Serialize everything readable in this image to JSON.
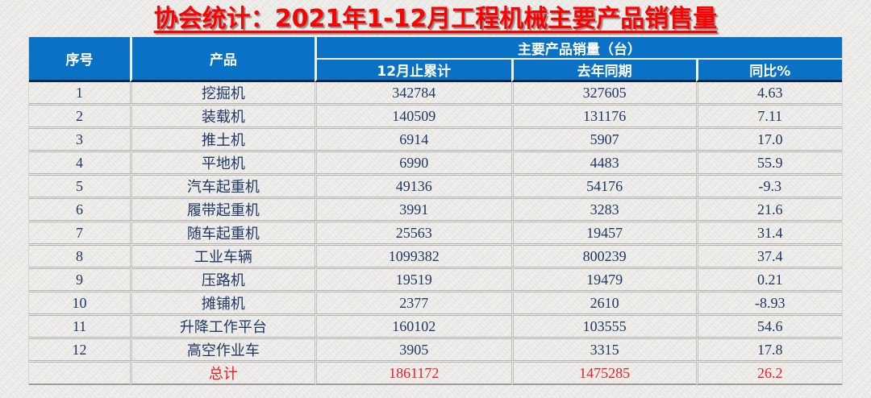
{
  "title": "协会统计：2021年1-12月工程机械主要产品销售量",
  "chart_data": {
    "type": "table",
    "title": "协会统计：2021年1-12月工程机械主要产品销售量",
    "group_header": "主要产品销量（台）",
    "columns": [
      "序号",
      "产品",
      "12月止累计",
      "去年同期",
      "同比%"
    ],
    "rows": [
      {
        "no": "1",
        "product": "挖掘机",
        "dec_cumulative": "342784",
        "last_year": "327605",
        "yoy_pct": "4.63"
      },
      {
        "no": "2",
        "product": "装载机",
        "dec_cumulative": "140509",
        "last_year": "131176",
        "yoy_pct": "7.11"
      },
      {
        "no": "3",
        "product": "推土机",
        "dec_cumulative": "6914",
        "last_year": "5907",
        "yoy_pct": "17.0"
      },
      {
        "no": "4",
        "product": "平地机",
        "dec_cumulative": "6990",
        "last_year": "4483",
        "yoy_pct": "55.9"
      },
      {
        "no": "5",
        "product": "汽车起重机",
        "dec_cumulative": "49136",
        "last_year": "54176",
        "yoy_pct": "-9.3"
      },
      {
        "no": "6",
        "product": "履带起重机",
        "dec_cumulative": "3991",
        "last_year": "3283",
        "yoy_pct": "21.6"
      },
      {
        "no": "7",
        "product": "随车起重机",
        "dec_cumulative": "25563",
        "last_year": "19457",
        "yoy_pct": "31.4"
      },
      {
        "no": "8",
        "product": "工业车辆",
        "dec_cumulative": "1099382",
        "last_year": "800239",
        "yoy_pct": "37.4"
      },
      {
        "no": "9",
        "product": "压路机",
        "dec_cumulative": "19519",
        "last_year": "19479",
        "yoy_pct": "0.21"
      },
      {
        "no": "10",
        "product": "摊铺机",
        "dec_cumulative": "2377",
        "last_year": "2610",
        "yoy_pct": "-8.93"
      },
      {
        "no": "11",
        "product": "升降工作平台",
        "dec_cumulative": "160102",
        "last_year": "103555",
        "yoy_pct": "54.6"
      },
      {
        "no": "12",
        "product": "高空作业车",
        "dec_cumulative": "3905",
        "last_year": "3315",
        "yoy_pct": "17.8"
      }
    ],
    "total": {
      "label": "总计",
      "dec_cumulative": "1861172",
      "last_year": "1475285",
      "yoy_pct": "26.2"
    }
  },
  "colors": {
    "header_bg": "#0a72c6",
    "header_text": "#ffffff",
    "body_text": "#1f3864",
    "accent_red": "#ee1c25",
    "title_red": "#fe0000"
  }
}
